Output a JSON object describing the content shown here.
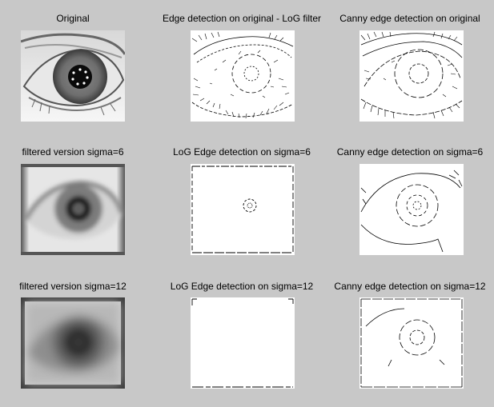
{
  "figure": {
    "background": "#c8c8c8",
    "rows": [
      {
        "panels": [
          {
            "title": "Original",
            "kind": "eye-original"
          },
          {
            "title": "Edge detection on original - LoG filter",
            "kind": "log-edges-original"
          },
          {
            "title": "Canny edge detection on original",
            "kind": "canny-edges-original"
          }
        ]
      },
      {
        "panels": [
          {
            "title": "filtered version sigma=6",
            "kind": "eye-blur-6"
          },
          {
            "title": "LoG Edge detection on sigma=6",
            "kind": "log-edges-sigma6"
          },
          {
            "title": "Canny edge detection on sigma=6",
            "kind": "canny-edges-sigma6"
          }
        ]
      },
      {
        "panels": [
          {
            "title": "filtered version sigma=12",
            "kind": "eye-blur-12"
          },
          {
            "title": "LoG Edge detection on sigma=12",
            "kind": "log-edges-sigma12"
          },
          {
            "title": "Canny edge detection on sigma=12",
            "kind": "canny-edges-sigma12"
          }
        ]
      }
    ]
  }
}
